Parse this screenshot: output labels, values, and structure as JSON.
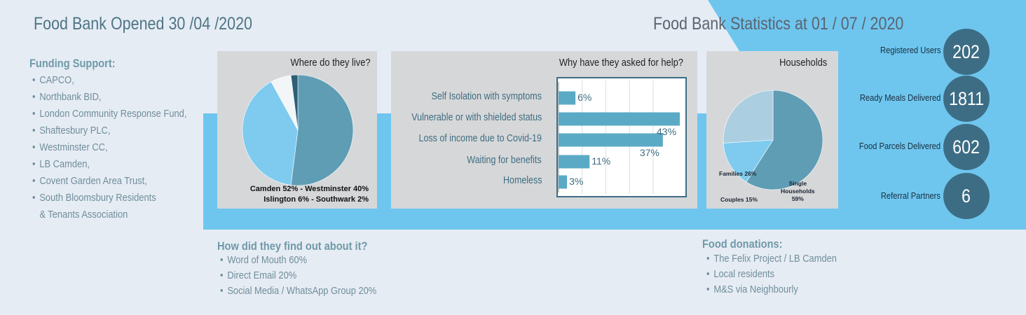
{
  "colors": {
    "background": "#e6ecf4",
    "band": "#6ec6ef",
    "panel": "#d6d7d9",
    "dark_circle": "#3d6d85",
    "bar": "#5aaac6"
  },
  "header": {
    "left_title": "Food Bank Opened 30 /04 /2020",
    "right_title": "Food Bank Statistics at 01 / 07 / 2020"
  },
  "funding": {
    "heading": "Funding Support:",
    "items": [
      "CAPCO,",
      "Northbank BID,",
      "London Community Response Fund,",
      "Shaftesbury PLC,",
      "Westminster CC,",
      "LB Camden,",
      "Covent Garden Area Trust,",
      "South Bloomsbury Residents",
      "& Tenants Association"
    ]
  },
  "find_out": {
    "heading": "How did they find out about it?",
    "items": [
      "Word of Mouth 60%",
      "Direct Email 20%",
      "Social Media / WhatsApp Group 20%"
    ]
  },
  "donations": {
    "heading": "Food donations:",
    "items": [
      "The Felix Project / LB Camden",
      "Local residents",
      "M&S via Neighbourly"
    ]
  },
  "stats": [
    {
      "label": "Registered Users",
      "value": "202"
    },
    {
      "label": "Ready Meals Delivered",
      "value": "1811"
    },
    {
      "label": "Food Parcels Delivered",
      "value": "602"
    },
    {
      "label": "Referral Partners",
      "value": "6"
    }
  ],
  "chart_data": [
    {
      "type": "pie",
      "title": "Where do they live?",
      "legend_lines": [
        "Camden 52% - Westminster 40%",
        "Islington 6% - Southwark 2%"
      ],
      "slices": [
        {
          "name": "Camden",
          "value": 52,
          "color": "#5f9db4"
        },
        {
          "name": "Westminster",
          "value": 40,
          "color": "#7ecbef"
        },
        {
          "name": "Islington",
          "value": 6,
          "color": "#f3f6f9"
        },
        {
          "name": "Southwark",
          "value": 2,
          "color": "#2f5e75"
        }
      ]
    },
    {
      "type": "bar",
      "orientation": "horizontal",
      "title": "Why have they asked for help?",
      "categories": [
        "Self Isolation with symptoms",
        "Vulnerable or with shielded status",
        "Loss of income due to Covid-19",
        "Waiting for benefits",
        "Homeless"
      ],
      "values": [
        6,
        43,
        37,
        11,
        3
      ],
      "value_labels": [
        "6%",
        "43%",
        "37%",
        "11%",
        "3%"
      ],
      "xlim": [
        0,
        43
      ],
      "grid": true
    },
    {
      "type": "pie",
      "title": "Households",
      "slices": [
        {
          "name": "Single Households",
          "label_lines": [
            "Single",
            "Households",
            "59%"
          ],
          "value": 59,
          "color": "#5f9db4"
        },
        {
          "name": "Couples",
          "label_lines": [
            "Couples 15%"
          ],
          "value": 15,
          "color": "#7ecbef"
        },
        {
          "name": "Families",
          "label_lines": [
            "Families 26%"
          ],
          "value": 26,
          "color": "#abcfe0"
        }
      ]
    }
  ]
}
